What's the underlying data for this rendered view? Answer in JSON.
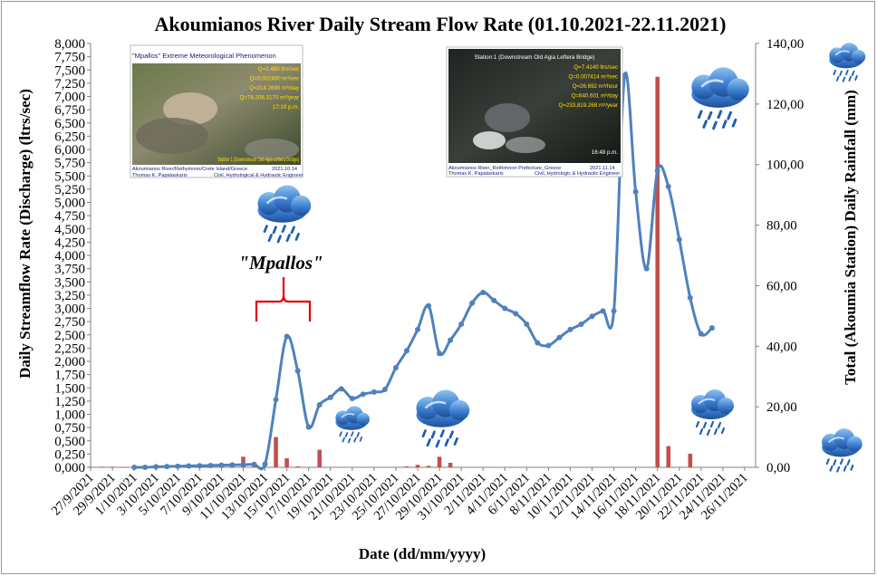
{
  "chart_data": {
    "type": "bar+line",
    "title": "Akoumianos River Daily Stream Flow Rate (01.10.2021-22.11.2021)",
    "xlabel": "Date (dd/mm/yyyy)",
    "ylabel_left": "Daily Streamflow Rate (Discharge) (ltrs/sec)",
    "ylabel_right": "Total (Akoumia Station) Daily Rainfall (mm)",
    "y_left_range": [
      0,
      8000
    ],
    "y_right_range": [
      0,
      140
    ],
    "x_range": [
      "27/9/2021",
      "27/11/2021"
    ],
    "y_left_ticks": [
      "0,000",
      "0,250",
      "0,500",
      "0,750",
      "1,000",
      "1,250",
      "1,500",
      "1,750",
      "2,000",
      "2,250",
      "2,500",
      "2,750",
      "3,000",
      "3,250",
      "3,500",
      "3,750",
      "4,000",
      "4,250",
      "4,500",
      "4,750",
      "5,000",
      "5,250",
      "5,500",
      "5,750",
      "6,000",
      "6,250",
      "6,500",
      "6,750",
      "7,000",
      "7,250",
      "7,500",
      "7,750",
      "8,000"
    ],
    "y_right_ticks": [
      "0,00",
      "20,00",
      "40,00",
      "60,00",
      "80,00",
      "100,00",
      "120,00",
      "140,00"
    ],
    "x_tick_labels": [
      "27/9/2021",
      "29/9/2021",
      "1/10/2021",
      "3/10/2021",
      "5/10/2021",
      "7/10/2021",
      "9/10/2021",
      "11/10/2021",
      "13/10/2021",
      "15/10/2021",
      "17/10/2021",
      "19/10/2021",
      "21/10/2021",
      "23/10/2021",
      "25/10/2021",
      "27/10/2021",
      "29/10/2021",
      "31/10/2021",
      "2/11/2021",
      "4/11/2021",
      "6/11/2021",
      "8/11/2021",
      "10/11/2021",
      "12/11/2021",
      "14/11/2021",
      "16/11/2021",
      "18/11/2021",
      "20/11/2021",
      "22/11/2021",
      "24/11/2021",
      "26/11/2021"
    ],
    "series": [
      {
        "name": "",
        "kind": "line",
        "axis": "left",
        "color": "#4f81bd",
        "points": [
          [
            "1/10/2021",
            0.0
          ],
          [
            "2/10/2021",
            0.0
          ],
          [
            "3/10/2021",
            10
          ],
          [
            "4/10/2021",
            15
          ],
          [
            "5/10/2021",
            20
          ],
          [
            "6/10/2021",
            25
          ],
          [
            "7/10/2021",
            30
          ],
          [
            "8/10/2021",
            35
          ],
          [
            "9/10/2021",
            40
          ],
          [
            "10/10/2021",
            45
          ],
          [
            "11/10/2021",
            50
          ],
          [
            "12/10/2021",
            55
          ],
          [
            "13/10/2021",
            60
          ],
          [
            "14/10/2021",
            1280
          ],
          [
            "15/10/2021",
            2470
          ],
          [
            "16/10/2021",
            1820
          ],
          [
            "17/10/2021",
            760
          ],
          [
            "18/10/2021",
            1180
          ],
          [
            "19/10/2021",
            1320
          ],
          [
            "20/10/2021",
            1480
          ],
          [
            "21/10/2021",
            1300
          ],
          [
            "22/10/2021",
            1380
          ],
          [
            "23/10/2021",
            1420
          ],
          [
            "24/10/2021",
            1470
          ],
          [
            "25/10/2021",
            1880
          ],
          [
            "26/10/2021",
            2200
          ],
          [
            "27/10/2021",
            2600
          ],
          [
            "28/10/2021",
            3050
          ],
          [
            "29/10/2021",
            2150
          ],
          [
            "30/10/2021",
            2400
          ],
          [
            "31/10/2021",
            2700
          ],
          [
            "1/11/2021",
            3100
          ],
          [
            "2/11/2021",
            3300
          ],
          [
            "3/11/2021",
            3150
          ],
          [
            "4/11/2021",
            3000
          ],
          [
            "5/11/2021",
            2900
          ],
          [
            "6/11/2021",
            2700
          ],
          [
            "7/11/2021",
            2350
          ],
          [
            "8/11/2021",
            2300
          ],
          [
            "9/11/2021",
            2450
          ],
          [
            "10/11/2021",
            2600
          ],
          [
            "11/11/2021",
            2700
          ],
          [
            "12/11/2021",
            2850
          ],
          [
            "13/11/2021",
            2950
          ],
          [
            "14/11/2021",
            2950
          ],
          [
            "15/11/2021",
            7400
          ],
          [
            "16/11/2021",
            5200
          ],
          [
            "17/11/2021",
            3750
          ],
          [
            "18/11/2021",
            5600
          ],
          [
            "19/11/2021",
            5300
          ],
          [
            "20/11/2021",
            4300
          ],
          [
            "21/11/2021",
            3200
          ],
          [
            "22/11/2021",
            2520
          ],
          [
            "23/11/2021",
            2630
          ]
        ]
      },
      {
        "name": "",
        "kind": "bar",
        "axis": "right",
        "color": "#c0504d",
        "points": [
          [
            "27/9/2021",
            0.2
          ],
          [
            "28/9/2021",
            0.2
          ],
          [
            "29/9/2021",
            0.2
          ],
          [
            "30/9/2021",
            0.1
          ],
          [
            "10/10/2021",
            0.3
          ],
          [
            "11/10/2021",
            3.5
          ],
          [
            "12/10/2021",
            0.5
          ],
          [
            "14/10/2021",
            10.0
          ],
          [
            "15/10/2021",
            3.0
          ],
          [
            "16/10/2021",
            0.3
          ],
          [
            "18/10/2021",
            5.8
          ],
          [
            "26/10/2021",
            0.3
          ],
          [
            "27/10/2021",
            0.8
          ],
          [
            "28/10/2021",
            0.5
          ],
          [
            "29/10/2021",
            3.5
          ],
          [
            "30/10/2021",
            1.5
          ],
          [
            "18/11/2021",
            129.0
          ],
          [
            "19/11/2021",
            7.0
          ],
          [
            "21/11/2021",
            4.5
          ]
        ]
      }
    ],
    "annotations": {
      "event_label": "\"Mpallos\""
    }
  },
  "photo_left": {
    "caption_title": "\"Mpallos\" Extreme Meteorological Phenomenon",
    "values": [
      "Q=2.480 ltrs/sec",
      "Q=0.002480 m³/sec",
      "Q=214.2690 m³/day",
      "Q=78,208.3170 m³/year",
      "17:10 p.m."
    ],
    "station_text": "Station 1 (Downstream Old Agia Leftera Bridge)",
    "footer_line1": "Akoumianos River/Rethymnon/Crete Island/Greece",
    "footer_date": "2021.10.14",
    "footer_line2_name": "Thomas K. Papalaskaris",
    "footer_line2_role": "Civil, Hydrological & Hydraulic Engineer"
  },
  "photo_right": {
    "station_text": "Station:1 (Downstream Old Agia Leftera Bridge)",
    "values": [
      "Q=7.4140 ltrs/sec",
      "Q=0.007414 m³/sec",
      "Q=26.692 m³/hour",
      "Q=640.601 m³/day",
      "Q=233,819.268 m³/year"
    ],
    "time_text": "16:48 p.m.",
    "footer_line1": "Akoumianos River_Rethimnon Prefecture_Greece",
    "footer_date": "2021.11.14",
    "footer_line2_name": "Thomas K. Papalaskaris",
    "footer_line2_role": "Civil, Hydrologic & Hydraulic Engineer"
  },
  "colors": {
    "line": "#4f81bd",
    "bars": "#c0504d",
    "annotation_bracket": "#e00000",
    "cloud": "#3a78c9",
    "rain": "#1f5fb0"
  }
}
